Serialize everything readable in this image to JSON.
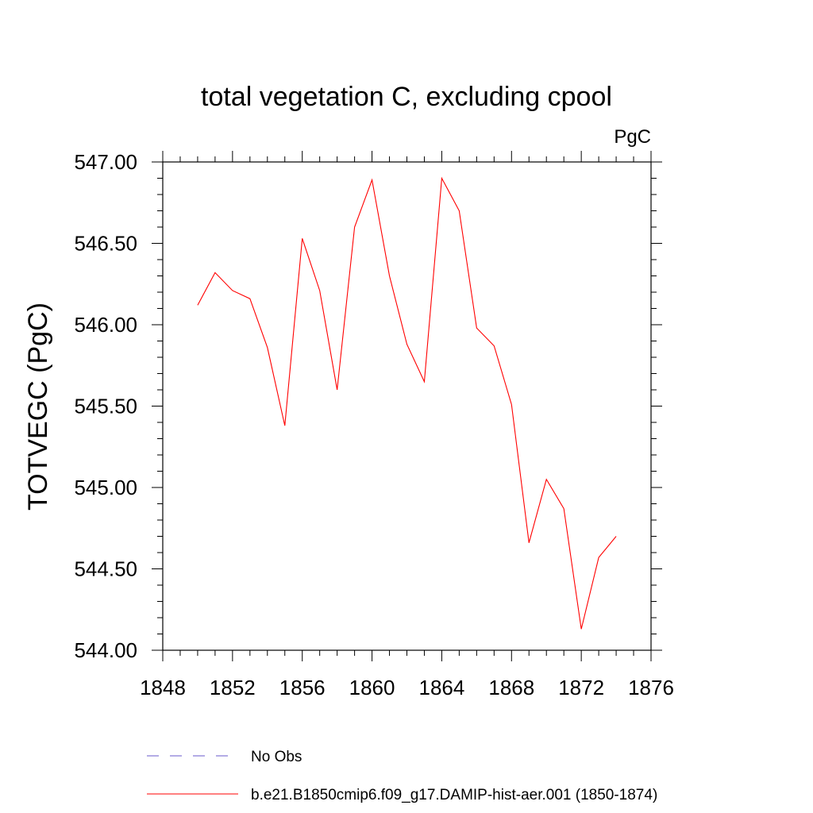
{
  "chart_data": {
    "type": "line",
    "title": "total vegetation C, excluding cpool",
    "units_label": "PgC",
    "ylabel": "TOTVEGC  (PgC)",
    "xlabel": "",
    "xlim": [
      1848,
      1876
    ],
    "ylim": [
      544.0,
      547.0
    ],
    "xticks": [
      1848,
      1852,
      1856,
      1860,
      1864,
      1868,
      1872,
      1876
    ],
    "yticks": [
      "544.00",
      "544.50",
      "545.00",
      "545.50",
      "546.00",
      "546.50",
      "547.00"
    ],
    "grid": false,
    "series": [
      {
        "name": "b.e21.B1850cmip6.f09_g17.DAMIP-hist-aer.001 (1850-1874)",
        "color": "#ff0000",
        "style": "solid",
        "x": [
          1850,
          1851,
          1852,
          1853,
          1854,
          1855,
          1856,
          1857,
          1858,
          1859,
          1860,
          1861,
          1862,
          1863,
          1864,
          1865,
          1866,
          1867,
          1868,
          1869,
          1870,
          1871,
          1872,
          1873,
          1874
        ],
        "y": [
          546.12,
          546.32,
          546.21,
          546.16,
          545.86,
          545.38,
          546.53,
          546.21,
          545.6,
          546.6,
          546.89,
          546.3,
          545.88,
          545.65,
          546.9,
          546.7,
          545.98,
          545.87,
          545.51,
          544.66,
          545.05,
          544.87,
          544.13,
          544.57,
          544.7
        ]
      }
    ],
    "legend": [
      {
        "label": "No Obs",
        "color": "#6a5acd",
        "style": "dashed"
      },
      {
        "label": "b.e21.B1850cmip6.f09_g17.DAMIP-hist-aer.001 (1850-1874)",
        "color": "#ff0000",
        "style": "solid"
      }
    ],
    "legend_position": "bottom"
  }
}
